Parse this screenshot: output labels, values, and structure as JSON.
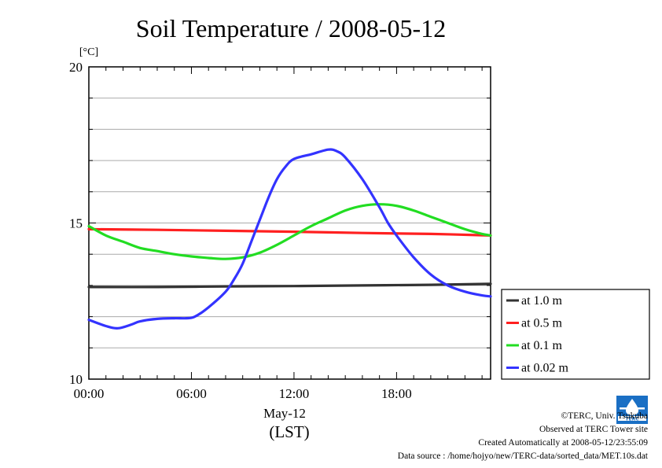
{
  "chart_data": {
    "type": "line",
    "title": "Soil Temperature / 2008-05-12",
    "y_unit_label": "[°C]",
    "y_ticks": [
      "20",
      "15",
      "10"
    ],
    "ylim": [
      10,
      20
    ],
    "y_grid_minor_step": 1,
    "x_ticks": [
      "00:00",
      "06:00",
      "12:00",
      "18:00"
    ],
    "xlim_hours": [
      0,
      23.5
    ],
    "x_date_label": "May-12",
    "x_zone_label": "(LST)",
    "grid": true,
    "legend_position": "right-bottom",
    "series": [
      {
        "name": "at 1.0 m",
        "color": "#333333",
        "points": [
          [
            0,
            12.95
          ],
          [
            4,
            12.95
          ],
          [
            8,
            12.97
          ],
          [
            12,
            12.98
          ],
          [
            16,
            13.0
          ],
          [
            20,
            13.02
          ],
          [
            23.5,
            13.05
          ]
        ]
      },
      {
        "name": "at 0.5 m",
        "color": "#ff2020",
        "points": [
          [
            0,
            14.8
          ],
          [
            4,
            14.78
          ],
          [
            8,
            14.75
          ],
          [
            12,
            14.72
          ],
          [
            16,
            14.68
          ],
          [
            20,
            14.65
          ],
          [
            23.5,
            14.6
          ]
        ]
      },
      {
        "name": "at 0.1 m",
        "color": "#22dd22",
        "points": [
          [
            0,
            14.9
          ],
          [
            1,
            14.6
          ],
          [
            2,
            14.4
          ],
          [
            3,
            14.2
          ],
          [
            4,
            14.1
          ],
          [
            5,
            14.0
          ],
          [
            6,
            13.93
          ],
          [
            7,
            13.88
          ],
          [
            8,
            13.85
          ],
          [
            9,
            13.9
          ],
          [
            10,
            14.05
          ],
          [
            11,
            14.3
          ],
          [
            12,
            14.6
          ],
          [
            13,
            14.9
          ],
          [
            14,
            15.15
          ],
          [
            15,
            15.4
          ],
          [
            16,
            15.55
          ],
          [
            17,
            15.6
          ],
          [
            18,
            15.55
          ],
          [
            19,
            15.4
          ],
          [
            20,
            15.2
          ],
          [
            21,
            15.0
          ],
          [
            22,
            14.8
          ],
          [
            23,
            14.65
          ],
          [
            23.5,
            14.6
          ]
        ]
      },
      {
        "name": "at 0.02 m",
        "color": "#3333ff",
        "points": [
          [
            0,
            11.9
          ],
          [
            1,
            11.7
          ],
          [
            1.7,
            11.63
          ],
          [
            2.5,
            11.75
          ],
          [
            3,
            11.85
          ],
          [
            4,
            11.93
          ],
          [
            5,
            11.95
          ],
          [
            5.7,
            11.95
          ],
          [
            6.2,
            12.0
          ],
          [
            7,
            12.3
          ],
          [
            8,
            12.8
          ],
          [
            8.5,
            13.2
          ],
          [
            9,
            13.7
          ],
          [
            9.5,
            14.4
          ],
          [
            10,
            15.1
          ],
          [
            10.5,
            15.8
          ],
          [
            11,
            16.4
          ],
          [
            11.5,
            16.8
          ],
          [
            12,
            17.05
          ],
          [
            13,
            17.2
          ],
          [
            14,
            17.35
          ],
          [
            14.5,
            17.3
          ],
          [
            15,
            17.1
          ],
          [
            16,
            16.4
          ],
          [
            17,
            15.5
          ],
          [
            17.5,
            15.0
          ],
          [
            18,
            14.6
          ],
          [
            19,
            13.9
          ],
          [
            20,
            13.35
          ],
          [
            21,
            13.0
          ],
          [
            22,
            12.8
          ],
          [
            23,
            12.68
          ],
          [
            23.5,
            12.65
          ]
        ]
      }
    ]
  },
  "credits": {
    "copyright": "©TERC, Univ. Tsukuba",
    "observed": "Observed at TERC Tower site",
    "created": "Created Automatically at 2008-05-12/23:55:09",
    "source": "Data source : /home/hojyo/new/TERC-data/sorted_data/MET.10s.dat",
    "logo_text": "TERC"
  }
}
